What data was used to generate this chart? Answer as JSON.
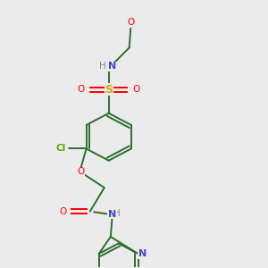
{
  "bg_color": "#ebebeb",
  "bond_color": "#2d6e2d",
  "atom_colors": {
    "O": "#ff0000",
    "N": "#4444cc",
    "S": "#ccaa00",
    "Cl": "#55aa00",
    "H": "#888888",
    "C": "#2d6e2d"
  },
  "figsize": [
    3.0,
    3.0
  ],
  "dpi": 100
}
